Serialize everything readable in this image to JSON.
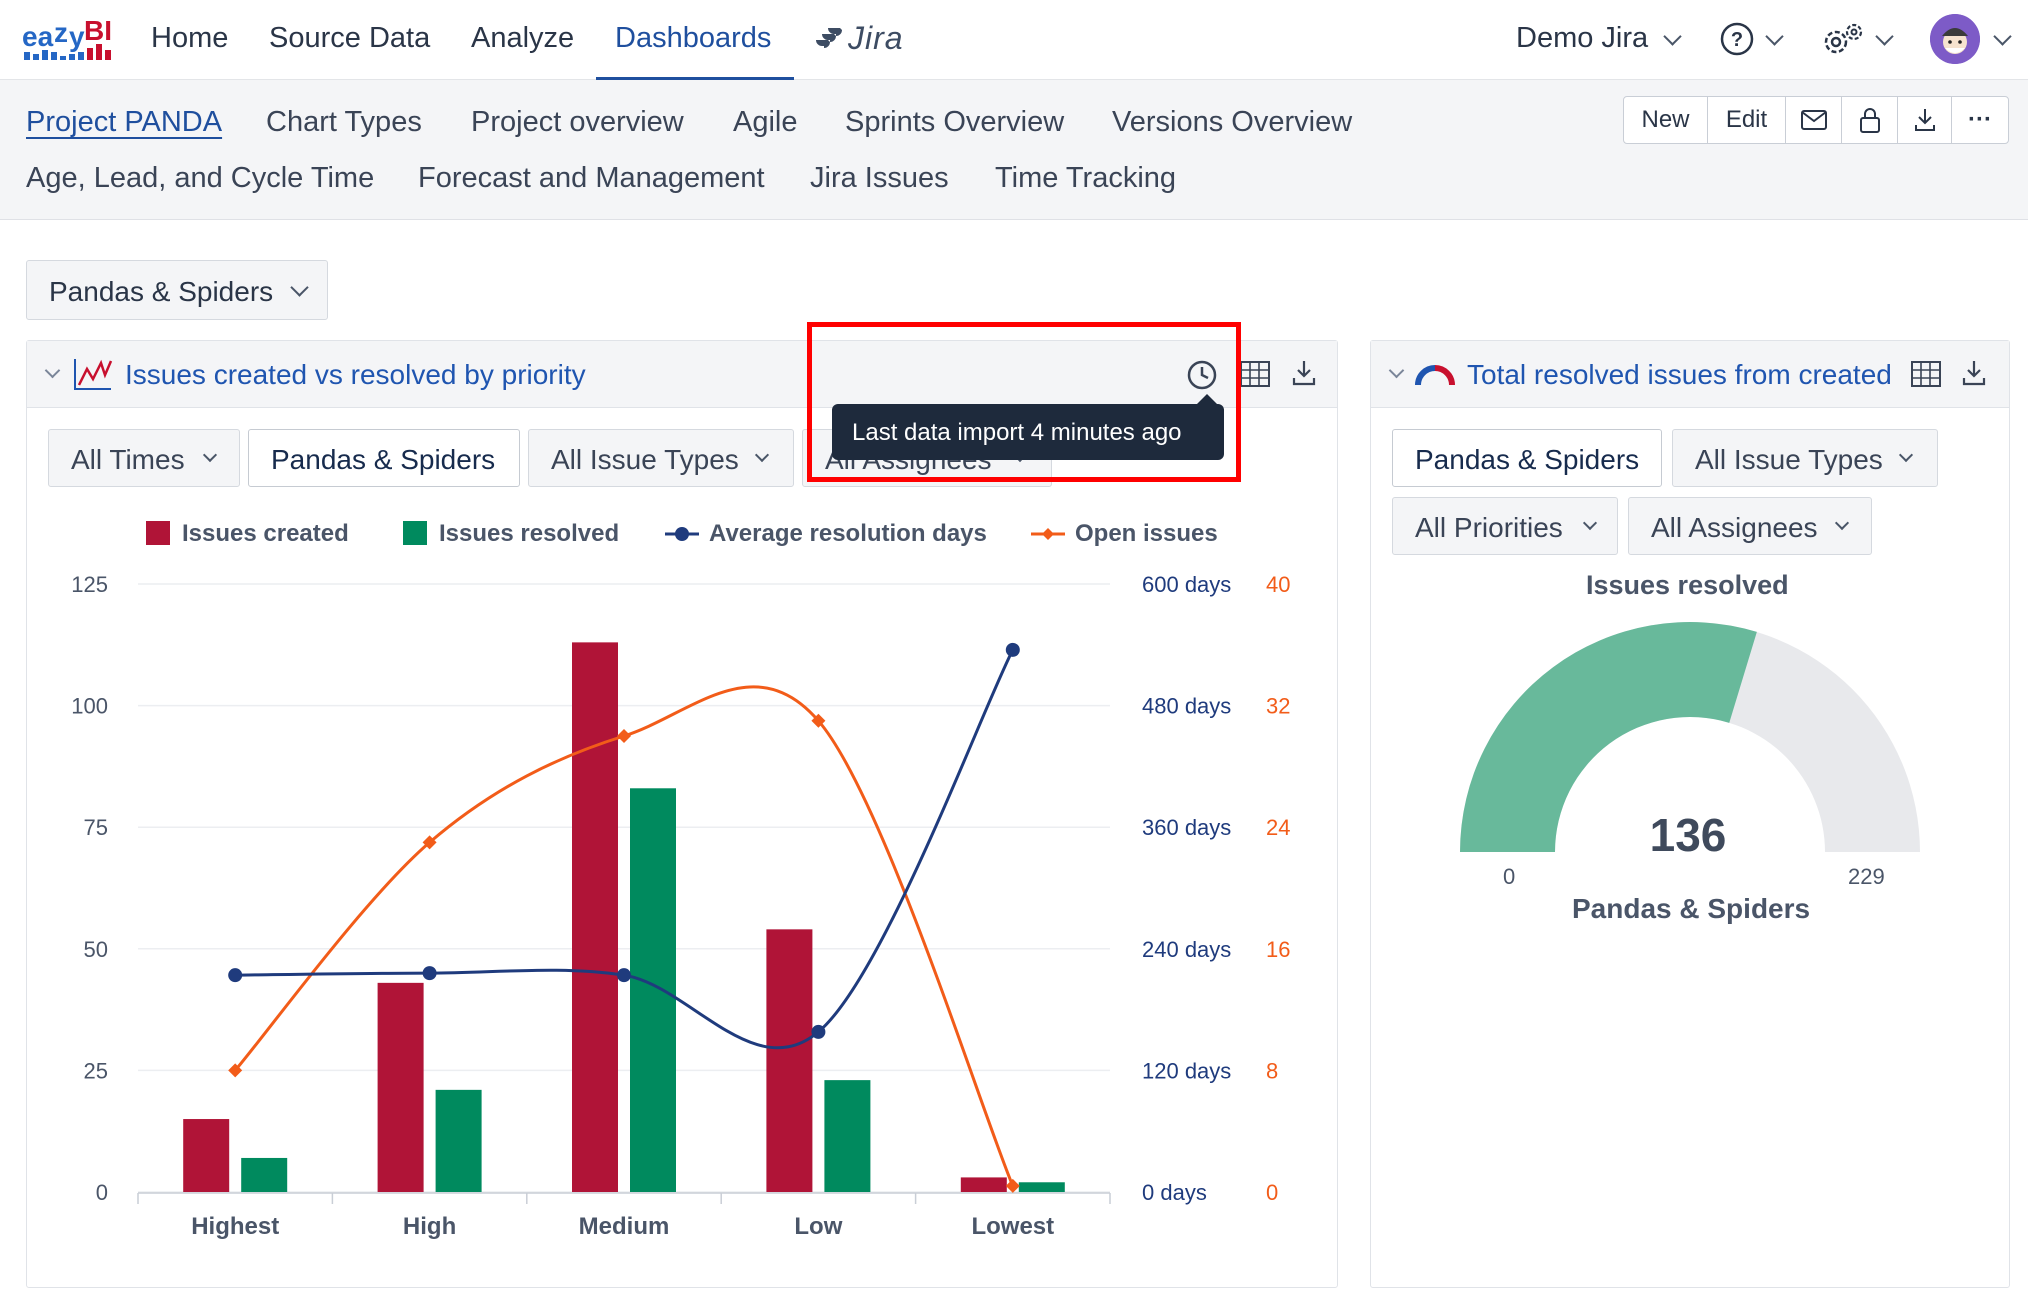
{
  "app": {
    "logo_text": "eazyBI",
    "nav": [
      "Home",
      "Source Data",
      "Analyze",
      "Dashboards"
    ],
    "active_nav": "Dashboards",
    "jira_label": "Jira",
    "account": "Demo Jira",
    "icons": [
      "help-icon",
      "settings-icon",
      "avatar"
    ]
  },
  "dashboard_tabs": {
    "row1": [
      "Project PANDA",
      "Chart Types",
      "Project overview",
      "Agile",
      "Sprints Overview",
      "Versions Overview"
    ],
    "row2": [
      "Age, Lead, and Cycle Time",
      "Forecast and Management",
      "Jira Issues",
      "Time Tracking"
    ],
    "active": "Project PANDA"
  },
  "toolbar": {
    "new_label": "New",
    "edit_label": "Edit",
    "icons": [
      "mail-icon",
      "lock-icon",
      "download-icon",
      "more-icon"
    ],
    "more_label": "···"
  },
  "page_filter": {
    "label": "Pandas & Spiders"
  },
  "report1": {
    "title": "Issues created vs resolved by priority",
    "filters": [
      "All Times",
      "Pandas & Spiders",
      "All Issue Types",
      "All Assignees"
    ],
    "tooltip": "Last data import 4 minutes ago"
  },
  "chart_data": {
    "type": "bar",
    "categories": [
      "Highest",
      "High",
      "Medium",
      "Low",
      "Lowest"
    ],
    "series": [
      {
        "name": "Issues created",
        "type": "bar",
        "axis": "left",
        "color": "#b01437",
        "values": [
          15,
          43,
          113,
          54,
          3
        ]
      },
      {
        "name": "Issues resolved",
        "type": "bar",
        "axis": "left",
        "color": "#008a5e",
        "values": [
          7,
          21,
          83,
          23,
          2
        ]
      },
      {
        "name": "Average resolution days",
        "type": "line",
        "axis": "right_days",
        "color": "#1f3b7d",
        "values": [
          214,
          216,
          214,
          158,
          535
        ]
      },
      {
        "name": "Open issues",
        "type": "line",
        "axis": "right_count",
        "color": "#f25c19",
        "values": [
          8,
          23,
          30,
          31,
          0.4
        ]
      }
    ],
    "ylim": [
      0,
      125
    ],
    "yticks": [
      "0",
      "25",
      "50",
      "75",
      "100",
      "125"
    ],
    "y2_days_ticks": [
      "0 days",
      "120 days",
      "240 days",
      "360 days",
      "480 days",
      "600 days"
    ],
    "y2_days_lim": [
      0,
      600
    ],
    "y3_ticks": [
      "0",
      "8",
      "16",
      "24",
      "32",
      "40"
    ],
    "y3_lim": [
      0,
      40
    ],
    "legend_position": "top",
    "grid": true
  },
  "report2": {
    "title": "Total resolved issues from created",
    "filters": [
      "Pandas & Spiders",
      "All Issue Types",
      "All Priorities",
      "All Assignees"
    ],
    "gauge": {
      "title": "Issues resolved",
      "value": 136,
      "value_text": "136",
      "min": "0",
      "max": "229",
      "max_value": 229,
      "label": "Pandas & Spiders",
      "fill_color": "#68b99b",
      "track_color": "#e8e9ec"
    }
  }
}
